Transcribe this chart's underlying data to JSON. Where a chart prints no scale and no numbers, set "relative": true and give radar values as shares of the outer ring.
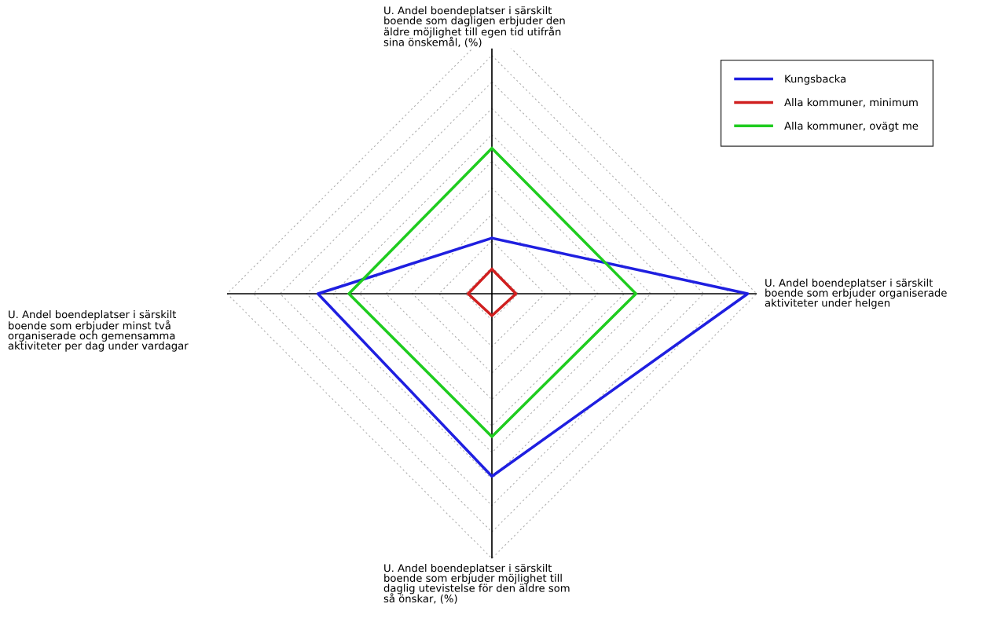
{
  "chart_data": {
    "type": "radar",
    "relative": true,
    "grid": true,
    "legend": "top right",
    "line_style": "solid",
    "marker": "none",
    "categories": [
      "U. Andel boendeplatser i särskilt\nboende som dagligen erbjuder den\näldre möjlighet till egen tid utifrån\nsina önskemål, (%)",
      "U. Andel boendeplatser i särskilt\nboende som erbjuder organiserade\naktiviteter under helgen",
      "U. Andel boendeplatser i särskilt\nboende som erbjuder möjlighet till\ndaglig utevistelse för den äldre som\nså önskar, (%)",
      "U. Andel boendeplatser i särskilt\nboende som erbjuder minst två\norganiserade och gemensamma\naktiviteter per dag under vardagar"
    ],
    "series": [
      {
        "name": "Kungsbacka",
        "color": "#1f1fe0",
        "values": [
          0.21,
          0.966,
          0.69,
          0.657
        ]
      },
      {
        "name": "Alla kommuner, minimum",
        "color": "#d01f1f",
        "values": [
          0.093,
          0.091,
          0.083,
          0.09
        ]
      },
      {
        "name": "Alla kommuner, ovägt me",
        "color": "#1fcc1f",
        "values": [
          0.55,
          0.544,
          0.54,
          0.54
        ]
      }
    ]
  }
}
